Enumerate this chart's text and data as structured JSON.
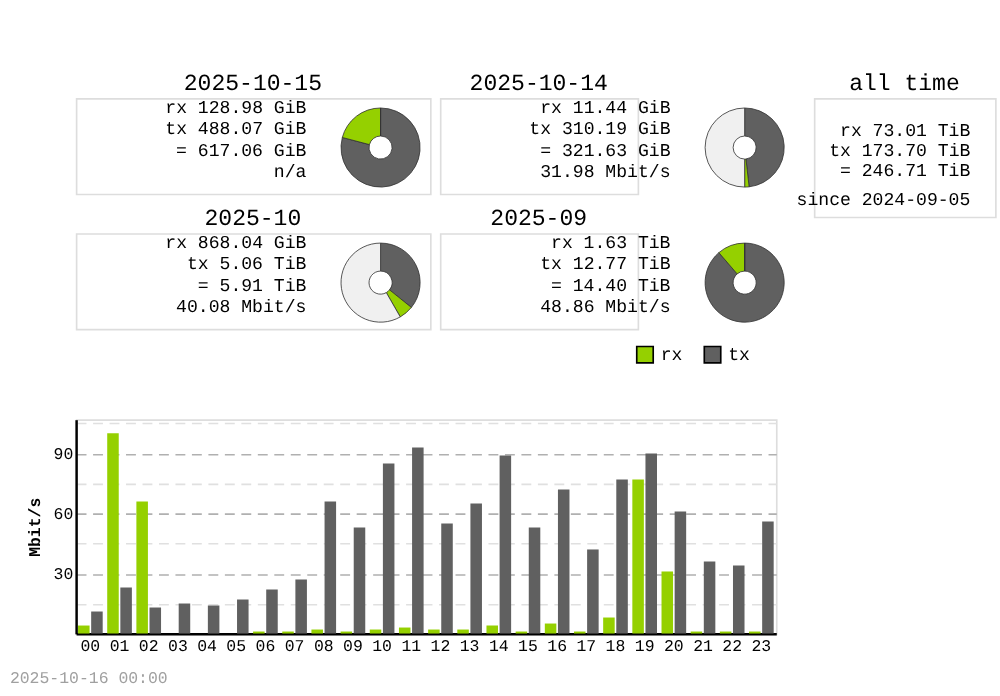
{
  "chart_data": [
    {
      "type": "donut",
      "title": "2025-10-15",
      "categories": [
        null,
        null,
        null
      ],
      "values": [
        79.1,
        20.9,
        0
      ],
      "colors": [
        "#606060",
        "#95d000",
        "#f0f0f0"
      ],
      "annotations": [
        "rx 128.98 GiB",
        "tx 488.07 GiB",
        "= 617.06 GiB",
        "n/a"
      ]
    },
    {
      "type": "donut",
      "title": "2025-10-14",
      "categories": [
        null,
        null,
        null
      ],
      "values": [
        48.2,
        1.8,
        50
      ],
      "colors": [
        "#606060",
        "#95d000",
        "#f0f0f0"
      ],
      "annotations": [
        "rx 11.44 GiB",
        "tx 310.19 GiB",
        "= 321.63 GiB",
        "31.98 Mbit/s"
      ]
    },
    {
      "type": "other",
      "title": "all time",
      "annotations": [
        "rx 73.01 TiB",
        "tx 173.70 TiB",
        "= 246.71 TiB",
        "since 2024-09-05"
      ]
    },
    {
      "type": "donut",
      "title": "2025-10",
      "categories": [
        null,
        null,
        null
      ],
      "values": [
        35.8,
        5.9,
        58.3
      ],
      "colors": [
        "#606060",
        "#95d000",
        "#f0f0f0"
      ],
      "annotations": [
        "rx 868.04 GiB",
        "tx 5.06 TiB",
        "= 5.91 TiB",
        "40.08 Mbit/s"
      ]
    },
    {
      "type": "donut",
      "title": "2025-09",
      "categories": [
        null,
        null,
        null
      ],
      "values": [
        88.7,
        11.3,
        0
      ],
      "colors": [
        "#606060",
        "#95d000",
        "#f0f0f0"
      ],
      "annotations": [
        "rx 1.63 TiB",
        "tx 12.77 TiB",
        "= 14.40 TiB",
        "48.86 Mbit/s"
      ]
    },
    {
      "type": "bar",
      "ylabel": "Mbit/s",
      "categories": [
        "00",
        "01",
        "02",
        "03",
        "04",
        "05",
        "06",
        "07",
        "08",
        "09",
        "10",
        "11",
        "12",
        "13",
        "14",
        "15",
        "16",
        "17",
        "18",
        "19",
        "20",
        "21",
        "22",
        "23"
      ],
      "series": [
        {
          "name": "rx",
          "color": "#95d000",
          "values": [
            4,
            100,
            66,
            0,
            0,
            0,
            1,
            1,
            2,
            1,
            2,
            3,
            2,
            2,
            4,
            1,
            5,
            1,
            8,
            77,
            31,
            1,
            1,
            1
          ]
        },
        {
          "name": "tx",
          "color": "#606060",
          "values": [
            11,
            23,
            13,
            15,
            14,
            17,
            22,
            27,
            66,
            53,
            85,
            93,
            55,
            65,
            89,
            53,
            72,
            42,
            77,
            90,
            61,
            36,
            34,
            56
          ]
        }
      ],
      "ylim": [
        0,
        107
      ],
      "yticks": [
        {
          "value": 15,
          "label": null
        },
        30,
        {
          "value": 45,
          "label": null
        },
        60,
        {
          "value": 75,
          "label": null
        },
        90,
        {
          "value": 105,
          "label": null
        }
      ],
      "grid": "y",
      "legend": "top right",
      "annotations": [
        "2025-10-16 00:00"
      ]
    }
  ]
}
